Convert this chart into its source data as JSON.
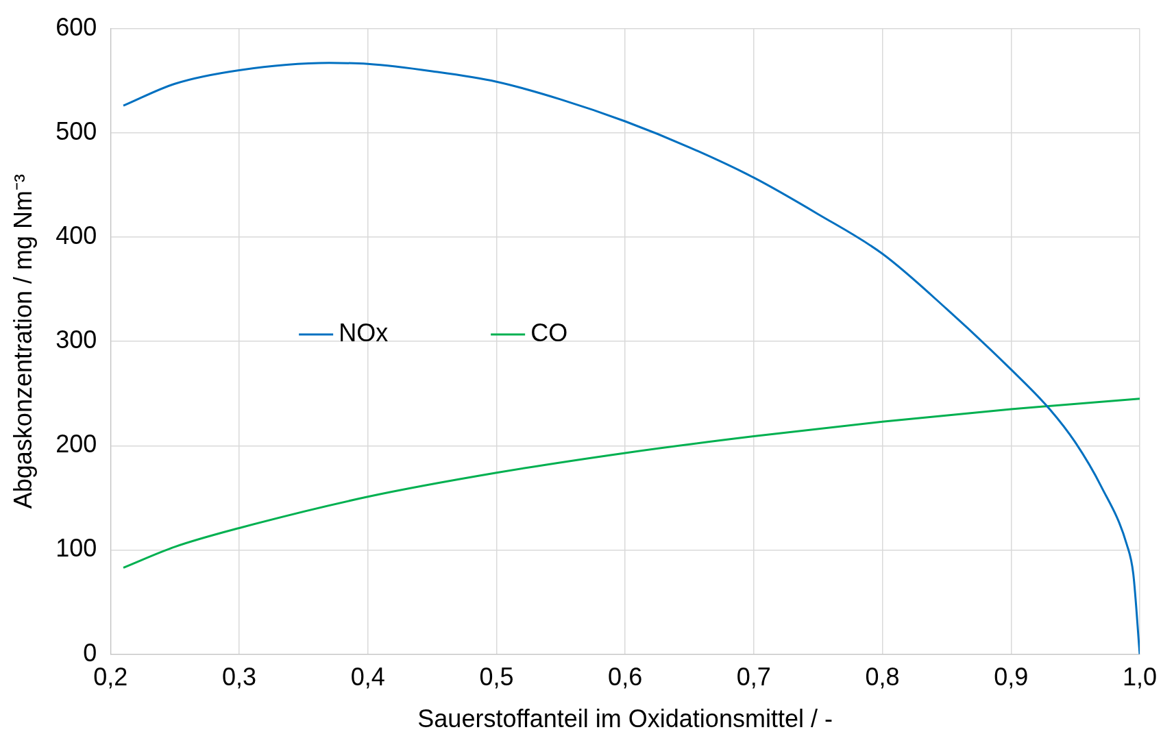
{
  "chart_data": {
    "type": "line",
    "xlabel": "Sauerstoffanteil im Oxidationsmittel / -",
    "ylabel": "Abgaskonzentration / mg Nm⁻³",
    "xlim": [
      0.2,
      1.0
    ],
    "xticks": [
      {
        "value": 0.2,
        "label": "0,2"
      },
      {
        "value": 0.3,
        "label": "0,3"
      },
      {
        "value": 0.4,
        "label": "0,4"
      },
      {
        "value": 0.5,
        "label": "0,5"
      },
      {
        "value": 0.6,
        "label": "0,6"
      },
      {
        "value": 0.7,
        "label": "0,7"
      },
      {
        "value": 0.8,
        "label": "0,8"
      },
      {
        "value": 0.9,
        "label": "0,9"
      },
      {
        "value": 1.0,
        "label": "1,0"
      }
    ],
    "ylim": [
      0,
      600
    ],
    "yticks": [
      0,
      100,
      200,
      300,
      400,
      500,
      600
    ],
    "grid": true,
    "legend": "center",
    "marker": "none",
    "line_style": "solid",
    "series": [
      {
        "name": "NOx",
        "color": "#0070c0",
        "x": [
          0.21,
          0.25,
          0.3,
          0.37,
          0.4,
          0.45,
          0.5,
          0.55,
          0.6,
          0.65,
          0.7,
          0.75,
          0.8,
          0.85,
          0.9,
          0.93,
          0.95,
          0.97,
          0.99,
          0.995,
          1.0
        ],
        "values": [
          526,
          547,
          560,
          567,
          566,
          559,
          549,
          532,
          511,
          486,
          457,
          422,
          384,
          331,
          273,
          235,
          203,
          161,
          105,
          77,
          0
        ]
      },
      {
        "name": "CO",
        "color": "#00b050",
        "x": [
          0.21,
          0.25,
          0.3,
          0.4,
          0.5,
          0.6,
          0.7,
          0.8,
          0.9,
          1.0
        ],
        "values": [
          83,
          103,
          121,
          151,
          174,
          193,
          209,
          223,
          235,
          245
        ]
      }
    ]
  }
}
